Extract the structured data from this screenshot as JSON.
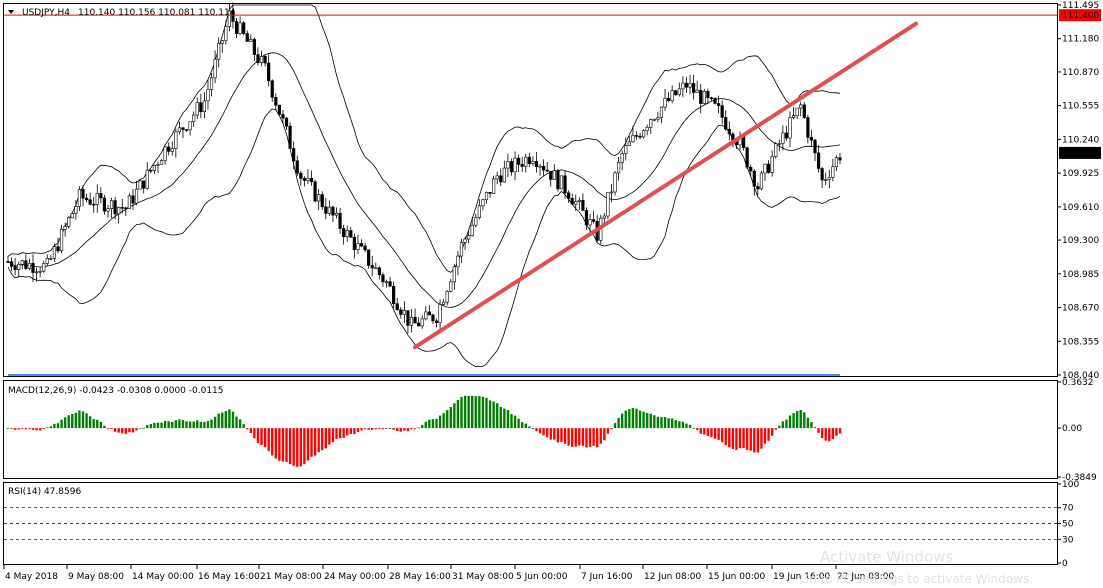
{
  "chart_data": [
    {
      "type": "candlestick",
      "symbol": "USDJPY,H4",
      "header_values": "110.140 110.156 110.081 110.114",
      "ylim": [
        108.04,
        111.495
      ],
      "y_ticks": [
        "111.495",
        "111.180",
        "110.870",
        "110.555",
        "110.240",
        "109.925",
        "109.610",
        "109.300",
        "108.985",
        "108.670",
        "108.355",
        "108.040"
      ],
      "resistance": {
        "value": 111.4,
        "label": "111.400",
        "color": "#ff0000"
      },
      "current_price": {
        "value": 110.114,
        "label": "110.114"
      },
      "trendline": {
        "from": {
          "x": "28 May 16:00",
          "y": 108.3
        },
        "to": {
          "x": "21 Jun 08:00",
          "y": 111.32
        },
        "color": "#e05050"
      },
      "indicators": [
        "Bollinger Bands",
        "Trend line"
      ]
    },
    {
      "type": "macd",
      "header": "MACD(12,26,9) -0.0423 -0.0308 0.0000 -0.0115",
      "ylim": [
        -0.3849,
        0.3632
      ],
      "y_ticks": [
        "0.3632",
        "0.00",
        "-0.3849"
      ],
      "colors": {
        "main": "#0000ff",
        "signal": "#ff0000",
        "hist_up": "#008000",
        "hist_down": "#ff0000"
      }
    },
    {
      "type": "rsi",
      "header": "RSI(14) 47.8596",
      "ylim": [
        0,
        100
      ],
      "y_ticks": [
        "100",
        "70",
        "50",
        "30",
        "0"
      ],
      "levels": [
        70,
        50,
        30
      ],
      "line_color": "#1e90ff"
    }
  ],
  "x_ticks": [
    "4 May 2018",
    "9 May 08:00",
    "14 May 00:00",
    "16 May 16:00",
    "21 May 08:00",
    "24 May 00:00",
    "28 May 16:00",
    "31 May 08:00",
    "5 Jun 00:00",
    "7 Jun 16:00",
    "12 Jun 08:00",
    "15 Jun 00:00",
    "19 Jun 16:00",
    "22 Jun 08:00"
  ],
  "watermark": {
    "line1": "Activate Windows",
    "line2": "Go to PC settings to activate Windows."
  }
}
